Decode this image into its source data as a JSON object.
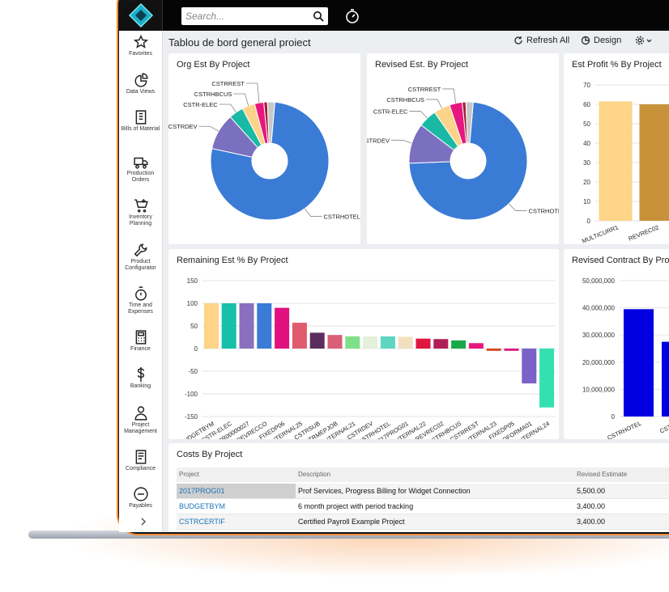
{
  "app": {
    "search_placeholder": "Search...",
    "page_title": "Tablou de bord general proiect",
    "actions": [
      "Refresh All",
      "Design"
    ],
    "sidebar": [
      "Favorites",
      "Data Views",
      "Bills of Material",
      "Production Orders",
      "Inventory Planning",
      "Product Configurator",
      "Time and Expenses",
      "Finance",
      "Banking",
      "Project Management",
      "Compliance",
      "Payables"
    ]
  },
  "chart_data": [
    {
      "type": "pie",
      "title": "Org Est By Project",
      "categories": [
        "CSTRHOTEL",
        "CSTRDEV",
        "CSTR-ELEC",
        "CSTRHBCUS",
        "CSTRREST",
        null,
        null
      ],
      "values": [
        77,
        10,
        4,
        3.5,
        2.5,
        1,
        2
      ],
      "colors": [
        "#3a7bd5",
        "#7b6fc0",
        "#19b9a5",
        "#fbd38a",
        "#e8177f",
        "#a0203a",
        "#c8c8c8"
      ]
    },
    {
      "type": "pie",
      "title": "Revised Est. By Project",
      "categories": [
        "CSTRHOTEL",
        "CSTRDEV",
        "CSTR-ELEC",
        "CSTRHBCUS",
        "CSTRREST",
        null,
        null
      ],
      "values": [
        73,
        11,
        5,
        4.5,
        3.5,
        1,
        2
      ],
      "colors": [
        "#3a7bd5",
        "#7b6fc0",
        "#19b9a5",
        "#fbd38a",
        "#e8177f",
        "#a0203a",
        "#c8c8c8"
      ]
    },
    {
      "type": "bar",
      "title": "Est Profit % By Project",
      "categories": [
        "MULTICURR1",
        "REVREC02"
      ],
      "values": [
        61.5,
        60
      ],
      "colors": [
        "#fdd488",
        "#c8923a"
      ],
      "ylim": [
        0,
        70
      ],
      "yticks": [
        0,
        10,
        20,
        30,
        40,
        50,
        60,
        70
      ],
      "grid": true
    },
    {
      "type": "bar",
      "title": "Remaining Est % By Project",
      "categories": [
        "BUDGETBYM",
        "CSTR-ELEC",
        "PR00000027",
        "REVRECCO",
        "FIXEDP06",
        "INTERNAL25",
        "CSTRSUB",
        "CSTRMEPJOB",
        "INTERNAL21",
        "CSTRDEV",
        "CSTRHOTEL",
        "2017PROG01",
        "INTERNAL22",
        "REVREC02",
        "CSTRHBCUS",
        "CSTRREST",
        "INTERNAL23",
        "FIXEDP05",
        "PROFORMA01",
        "INTERNAL24"
      ],
      "values": [
        100,
        100,
        100,
        100,
        90,
        57,
        35,
        30,
        27,
        27,
        27,
        26,
        22,
        21,
        18,
        12,
        -5,
        -5,
        -77,
        -130
      ],
      "colors": [
        "#fdd488",
        "#17c0a8",
        "#8a6fbf",
        "#3a7bd5",
        "#e0117f",
        "#e05a6e",
        "#5a2d5e",
        "#d95e78",
        "#7fe08a",
        "#e4efdc",
        "#5ed6c0",
        "#f2dfc0",
        "#e0173f",
        "#b01e58",
        "#1aa94a",
        "#e8177f",
        "#d94520",
        "#e0177f",
        "#7b62c8",
        "#34e0b0"
      ],
      "ylim": [
        -150,
        150
      ],
      "yticks": [
        -150,
        -100,
        -50,
        0,
        50,
        100,
        150
      ],
      "grid": true
    },
    {
      "type": "bar",
      "title": "Revised Contract By Project",
      "categories": [
        "CSTRHOTEL",
        "CSTRD"
      ],
      "values": [
        39500000,
        27500000
      ],
      "colors": [
        "#0000e0",
        "#0000e0"
      ],
      "ylim": [
        0,
        50000000
      ],
      "yticks": [
        0,
        {
          "value": 10000000,
          "label": "10,000,000"
        },
        {
          "value": 20000000,
          "label": "20,000,000"
        },
        {
          "value": 30000000,
          "label": "30,000,000"
        },
        {
          "value": 40000000,
          "label": "40,000,000"
        },
        {
          "value": 50000000,
          "label": "50,000,000"
        }
      ],
      "grid": true
    }
  ],
  "table": {
    "title": "Costs By Project",
    "columns": [
      "Project",
      "Description",
      "Revised Estimate"
    ],
    "rows": [
      [
        "2017PROG01",
        "Prof Services, Progress Billing for Widget Connection",
        "5,500.00"
      ],
      [
        "BUDGETBYM",
        "6 month project with period tracking",
        "3,400.00"
      ],
      [
        "CSTRCERTIF",
        "Certified Payroll Example Project",
        "3,400.00"
      ]
    ]
  }
}
